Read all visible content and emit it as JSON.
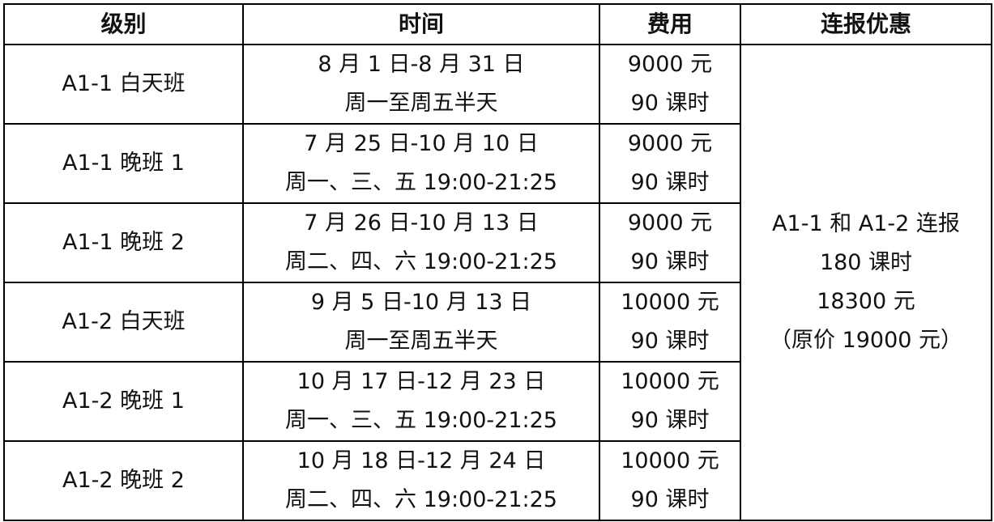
{
  "headers": [
    "级别",
    "时间",
    "费用",
    "连报优惠"
  ],
  "rows": [
    {
      "level": "A1-1 白天班",
      "time": [
        "8 月 1 日-8 月 31 日",
        "周一至周五半天"
      ],
      "fee": [
        "9000 元",
        "90 课时"
      ]
    },
    {
      "level": "A1-1 晚班 1",
      "time": [
        "7 月 25 日-10 月 10 日",
        "周一、三、五 19:00-21:25"
      ],
      "fee": [
        "9000 元",
        "90 课时"
      ]
    },
    {
      "level": "A1-1 晚班 2",
      "time": [
        "7 月 26 日-10 月 13 日",
        "周二、四、六 19:00-21:25"
      ],
      "fee": [
        "9000 元",
        "90 课时"
      ]
    },
    {
      "level": "A1-2 白天班",
      "time": [
        "9 月 5 日-10 月 13 日",
        "周一至周五半天"
      ],
      "fee": [
        "10000 元",
        "90 课时"
      ]
    },
    {
      "level": "A1-2 晚班 1",
      "time": [
        "10 月 17 日-12 月 23 日",
        "周一、三、五 19:00-21:25"
      ],
      "fee": [
        "10000 元",
        "90 课时"
      ]
    },
    {
      "level": "A1-2 晚班 2",
      "time": [
        "10 月 18 日-12 月 24 日",
        "周二、四、六 19:00-21:25"
      ],
      "fee": [
        "10000 元",
        "90 课时"
      ]
    }
  ],
  "discount": [
    "A1-1 和 A1-2 连报",
    "180 课时",
    "18300 元",
    "（原价 19000 元）"
  ]
}
